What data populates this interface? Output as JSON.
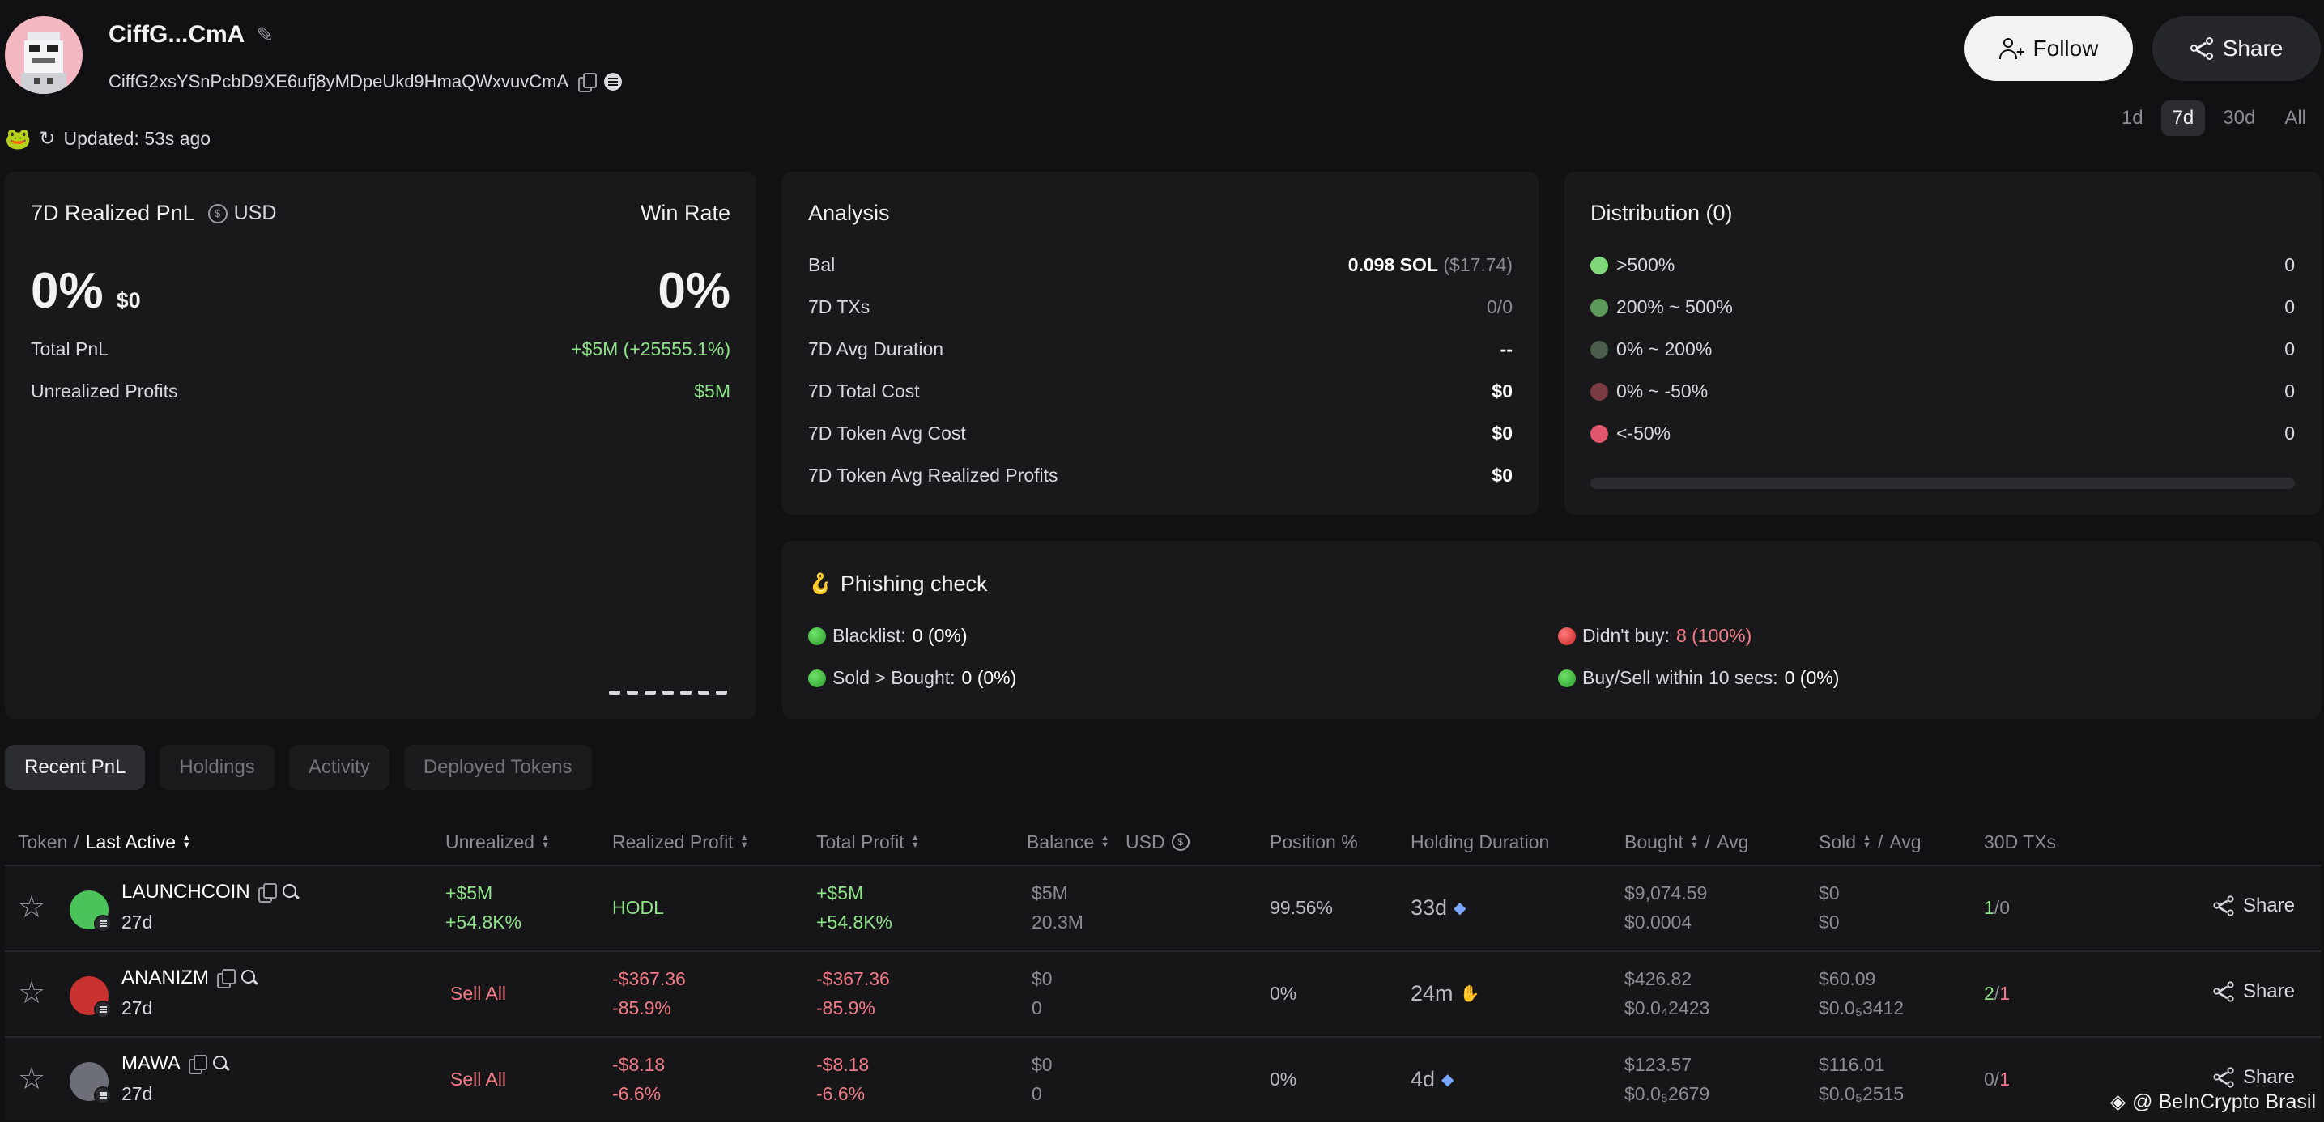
{
  "header": {
    "title": "CiffG...CmA",
    "address": "CiffG2xsYSnPcbD9XE6ufj8yMDpeUkd9HmaQWxvuvCmA",
    "updated": "Updated: 53s ago",
    "follow_label": "Follow",
    "share_label": "Share"
  },
  "periods": [
    {
      "label": "1d",
      "active": false
    },
    {
      "label": "7d",
      "active": true
    },
    {
      "label": "30d",
      "active": false
    },
    {
      "label": "All",
      "active": false
    }
  ],
  "pnl": {
    "title": "7D Realized PnL",
    "currency": "USD",
    "winrate_label": "Win Rate",
    "pct": "0%",
    "usd": "$0",
    "winrate": "0%",
    "total_pnl_label": "Total PnL",
    "total_pnl_value": "+$5M (+25555.1%)",
    "unrealized_label": "Unrealized Profits",
    "unrealized_value": "$5M"
  },
  "analysis": {
    "title": "Analysis",
    "rows": [
      {
        "label": "Bal",
        "value": "0.098 SOL",
        "extra": " ($17.74)"
      },
      {
        "label": "7D TXs",
        "value": "0/0"
      },
      {
        "label": "7D Avg Duration",
        "value": "--"
      },
      {
        "label": "7D Total Cost",
        "value": "$0"
      },
      {
        "label": "7D Token Avg Cost",
        "value": "$0"
      },
      {
        "label": "7D Token Avg Realized Profits",
        "value": "$0"
      }
    ]
  },
  "distribution": {
    "title": "Distribution (0)",
    "rows": [
      {
        "label": ">500%",
        "value": "0",
        "color": "#7fd77a"
      },
      {
        "label": "200% ~ 500%",
        "value": "0",
        "color": "#5e9a5c"
      },
      {
        "label": "0% ~ 200%",
        "value": "0",
        "color": "#4b5e4b"
      },
      {
        "label": "0% ~ -50%",
        "value": "0",
        "color": "#7a3b42"
      },
      {
        "label": "<-50%",
        "value": "0",
        "color": "#e0566a"
      }
    ]
  },
  "phishing": {
    "title": "Phishing check",
    "items": [
      {
        "label": "Blacklist:",
        "value": "0 (0%)",
        "status": "green"
      },
      {
        "label": "Sold > Bought:",
        "value": "0 (0%)",
        "status": "green"
      },
      {
        "label": "Didn't buy:",
        "value": "8 (100%)",
        "status": "red"
      },
      {
        "label": "Buy/Sell within 10 secs:",
        "value": "0 (0%)",
        "status": "green"
      }
    ]
  },
  "tabs": [
    {
      "label": "Recent PnL",
      "active": true
    },
    {
      "label": "Holdings",
      "active": false
    },
    {
      "label": "Activity",
      "active": false
    },
    {
      "label": "Deployed Tokens",
      "active": false
    }
  ],
  "table": {
    "headers": {
      "token": "Token",
      "sep": "/",
      "last_active": "Last Active",
      "unrealized": "Unrealized",
      "realized": "Realized Profit",
      "total": "Total Profit",
      "balance": "Balance",
      "balance_usd": "USD",
      "position": "Position %",
      "holding": "Holding Duration",
      "bought": "Bought",
      "sold": "Sold",
      "avg": "Avg",
      "txs": "30D TXs"
    },
    "rows": [
      {
        "name": "LAUNCHCOIN",
        "age": "27d",
        "icon_color": "#4bc25a",
        "unrealized_1": "+$5M",
        "unrealized_2": "+54.8K%",
        "realized_1": "HODL",
        "realized_2": "",
        "total_1": "+$5M",
        "total_2": "+54.8K%",
        "balance_1": "$5M",
        "balance_2": "20.3M",
        "position": "99.56%",
        "holding": "33d",
        "holding_icon": "gem-icon",
        "bought_1": "$9,074.59",
        "bought_2": "$0.0004",
        "sold_1": "$0",
        "sold_2": "$0",
        "tx_buy": "1",
        "tx_sep": "/",
        "tx_sell": "0",
        "share": "Share"
      },
      {
        "name": "ANANIZM",
        "age": "27d",
        "icon_color": "#c8322f",
        "unrealized_1": "Sell All",
        "unrealized_2": "",
        "realized_1": "-$367.36",
        "realized_2": "-85.9%",
        "total_1": "-$367.36",
        "total_2": "-85.9%",
        "balance_1": "$0",
        "balance_2": "0",
        "position": "0%",
        "holding": "24m",
        "holding_icon": "hand-icon",
        "bought_1": "$426.82",
        "bought_2": "$0.0₄2423",
        "sold_1": "$60.09",
        "sold_2": "$0.0₅3412",
        "tx_buy": "2",
        "tx_sep": "/",
        "tx_sell": "1",
        "share": "Share"
      },
      {
        "name": "MAWA",
        "age": "27d",
        "icon_color": "#6c6f78",
        "unrealized_1": "Sell All",
        "unrealized_2": "",
        "realized_1": "-$8.18",
        "realized_2": "-6.6%",
        "total_1": "-$8.18",
        "total_2": "-6.6%",
        "balance_1": "$0",
        "balance_2": "0",
        "position": "0%",
        "holding": "4d",
        "holding_icon": "gem-icon",
        "bought_1": "$123.57",
        "bought_2": "$0.0₅2679",
        "sold_1": "$116.01",
        "sold_2": "$0.0₅2515",
        "tx_buy": "0",
        "tx_sep": "/",
        "tx_sell": "1",
        "share": "Share"
      }
    ]
  },
  "watermark": "@ BeInCrypto Brasil"
}
